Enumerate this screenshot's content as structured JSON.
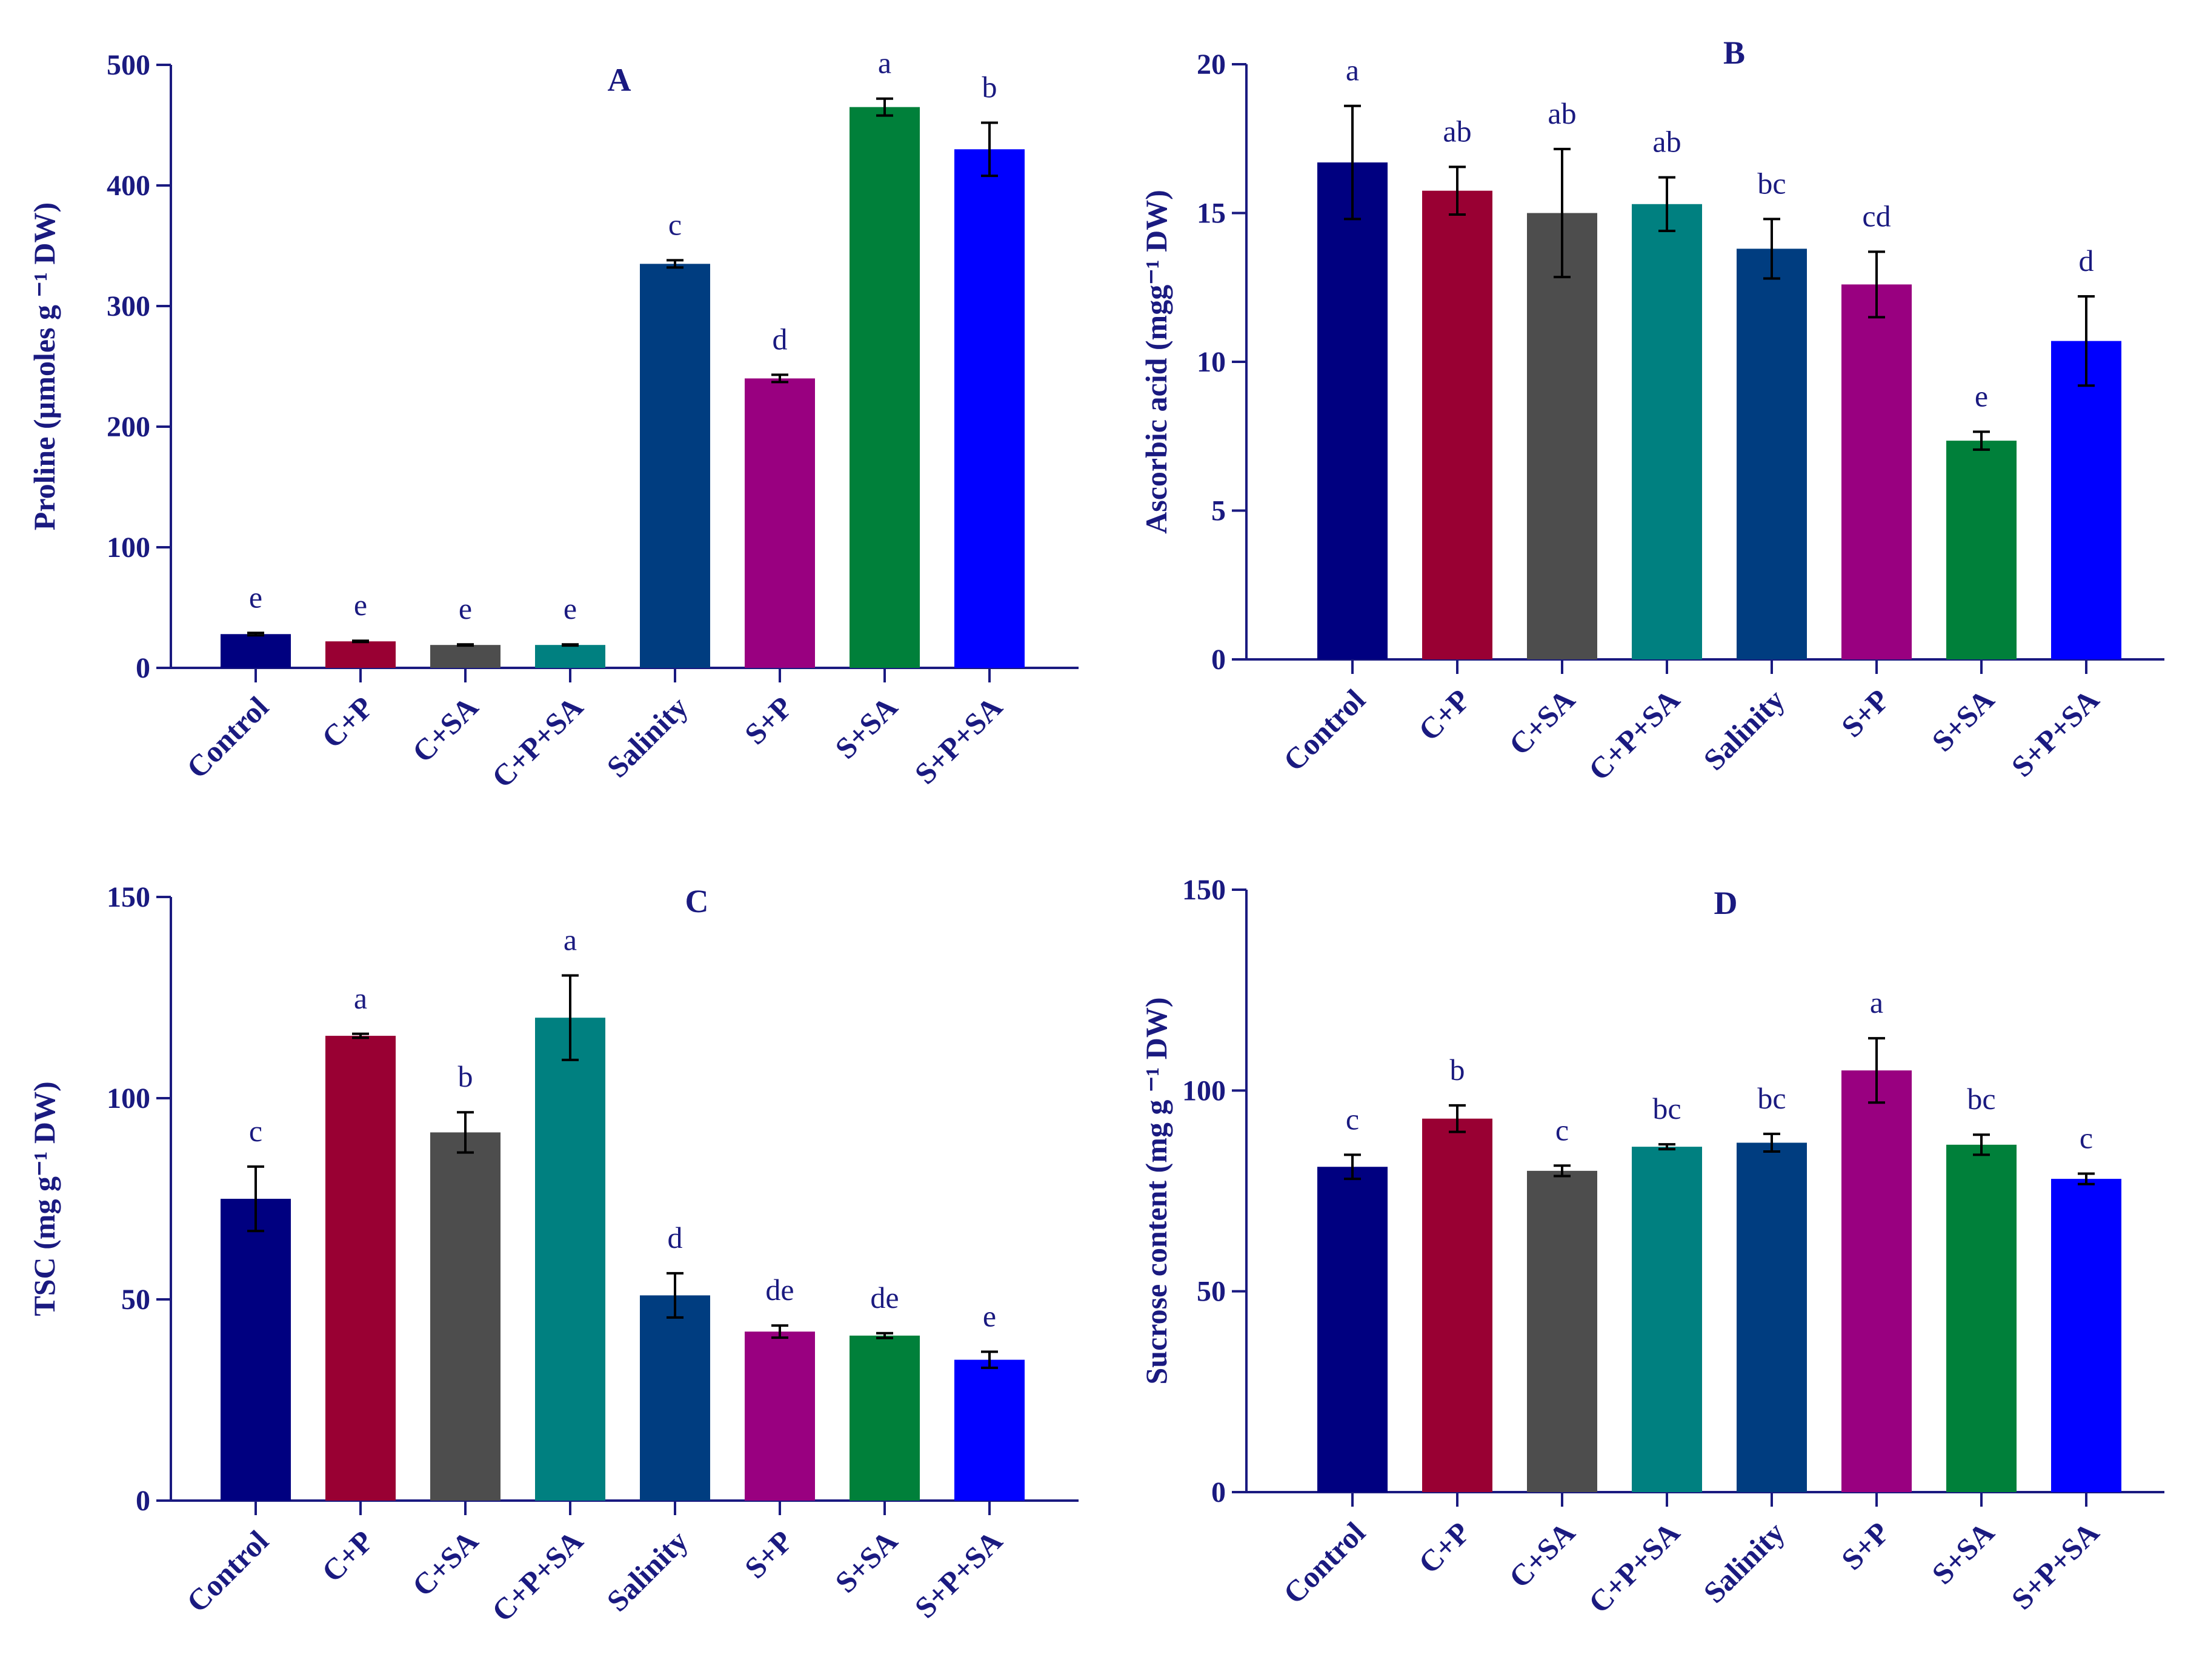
{
  "chart_data": [
    {
      "type": "bar",
      "title": "A",
      "ylabel": "Proline (µmoles g ⁻¹ DW)",
      "ylim": [
        0,
        500
      ],
      "ticks": [
        0,
        100,
        200,
        300,
        400,
        500
      ],
      "tick_labels": [
        "0",
        "100",
        "200",
        "300",
        "400",
        "500"
      ],
      "categories": [
        "Control",
        "C+P",
        "C+SA",
        "C+P+SA",
        "Salinity",
        "S+P",
        "S+SA",
        "S+P+SA"
      ],
      "values": [
        28,
        22,
        19,
        19,
        335,
        240,
        465,
        430
      ],
      "errors": [
        1,
        0.5,
        0.5,
        0.5,
        3,
        3,
        7,
        22
      ],
      "significance": [
        "e",
        "e",
        "e",
        "e",
        "c",
        "d",
        "a",
        "b"
      ],
      "colors": [
        "#000080",
        "#990033",
        "#4d4d4d",
        "#008080",
        "#003d80",
        "#990080",
        "#00803a",
        "#0000ff"
      ]
    },
    {
      "type": "bar",
      "title": "B",
      "ylabel": "Ascorbic acid (mgg⁻¹ DW)",
      "ylim": [
        0,
        20
      ],
      "ticks": [
        0,
        5,
        10,
        15,
        20
      ],
      "tick_labels": [
        "0",
        "5",
        "10",
        "15",
        "20"
      ],
      "categories": [
        "Control",
        "C+P",
        "C+SA",
        "C+P+SA",
        "Salinity",
        "S+P",
        "S+SA",
        "S+P+SA"
      ],
      "values": [
        16.7,
        15.75,
        15.0,
        15.3,
        13.8,
        12.6,
        7.35,
        10.7
      ],
      "errors": [
        1.9,
        0.8,
        2.15,
        0.9,
        1.0,
        1.1,
        0.3,
        1.5
      ],
      "significance": [
        "a",
        "ab",
        "ab",
        "ab",
        "bc",
        "cd",
        "e",
        "d"
      ],
      "colors": [
        "#000080",
        "#990033",
        "#4d4d4d",
        "#008080",
        "#003d80",
        "#990080",
        "#00803a",
        "#0000ff"
      ]
    },
    {
      "type": "bar",
      "title": "C",
      "ylabel": "TSC (mg g⁻¹ DW)",
      "ylim": [
        0,
        150
      ],
      "ticks": [
        0,
        50,
        100,
        150
      ],
      "tick_labels": [
        "0",
        "50",
        "100",
        "150"
      ],
      "categories": [
        "Control",
        "C+P",
        "C+SA",
        "C+P+SA",
        "Salinity",
        "S+P",
        "S+SA",
        "S+P+SA"
      ],
      "values": [
        75,
        115.5,
        91.5,
        120,
        51,
        42,
        41,
        35
      ],
      "errors": [
        8,
        0.5,
        5,
        10.5,
        5.5,
        1.5,
        0.6,
        2
      ],
      "significance": [
        "c",
        "a",
        "b",
        "a",
        "d",
        "de",
        "de",
        "e"
      ],
      "colors": [
        "#000080",
        "#990033",
        "#4d4d4d",
        "#008080",
        "#003d80",
        "#990080",
        "#00803a",
        "#0000ff"
      ]
    },
    {
      "type": "bar",
      "title": "D",
      "ylabel": "Sucrose content (mg g ⁻¹ DW)",
      "ylim": [
        0,
        150
      ],
      "ticks": [
        0,
        50,
        100,
        150
      ],
      "tick_labels": [
        "0",
        "50",
        "100",
        "150"
      ],
      "categories": [
        "Control",
        "C+P",
        "C+SA",
        "C+P+SA",
        "Salinity",
        "S+P",
        "S+SA",
        "S+P+SA"
      ],
      "values": [
        81,
        93,
        80,
        86,
        87,
        105,
        86.5,
        78
      ],
      "errors": [
        3,
        3.3,
        1.3,
        0.6,
        2.2,
        8,
        2.5,
        1.3
      ],
      "significance": [
        "c",
        "b",
        "c",
        "bc",
        "bc",
        "a",
        "bc",
        "c"
      ],
      "colors": [
        "#000080",
        "#990033",
        "#4d4d4d",
        "#008080",
        "#003d80",
        "#990080",
        "#00803a",
        "#0000ff"
      ]
    }
  ]
}
